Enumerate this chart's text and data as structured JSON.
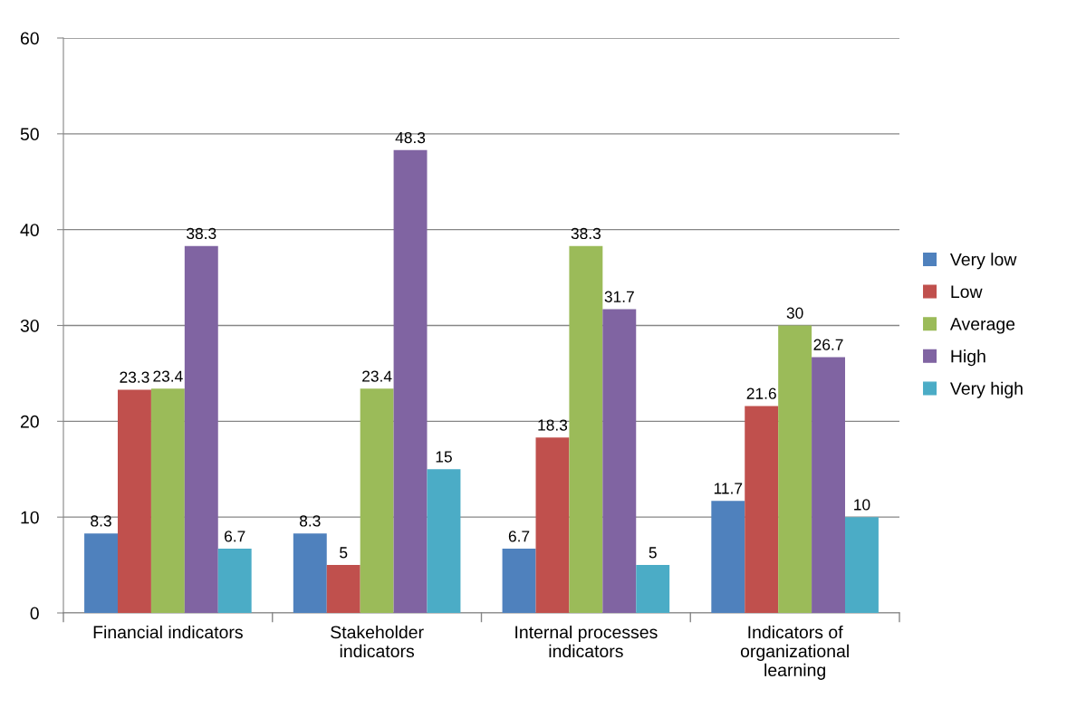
{
  "chart_data": {
    "type": "bar",
    "categories": [
      "Financial indicators",
      "Stakeholder\nindicators",
      "Internal processes\nindicators",
      "Indicators of\norganizational\nlearning"
    ],
    "series": [
      {
        "name": "Very low",
        "color": "#4f81bd",
        "values": [
          8.3,
          8.3,
          6.7,
          11.7
        ]
      },
      {
        "name": "Low",
        "color": "#c0504d",
        "values": [
          23.3,
          5,
          18.3,
          21.6
        ]
      },
      {
        "name": "Average",
        "color": "#9bbb59",
        "values": [
          23.4,
          23.4,
          38.3,
          30
        ]
      },
      {
        "name": "High",
        "color": "#8064a2",
        "values": [
          38.3,
          48.3,
          31.7,
          26.7
        ]
      },
      {
        "name": "Very high",
        "color": "#4bacc6",
        "values": [
          6.7,
          15,
          5,
          10
        ]
      }
    ],
    "ylim": [
      0,
      60
    ],
    "yticks": [
      0,
      10,
      20,
      30,
      40,
      50,
      60
    ],
    "grid": "y",
    "legend": "right",
    "data_labels": true
  }
}
